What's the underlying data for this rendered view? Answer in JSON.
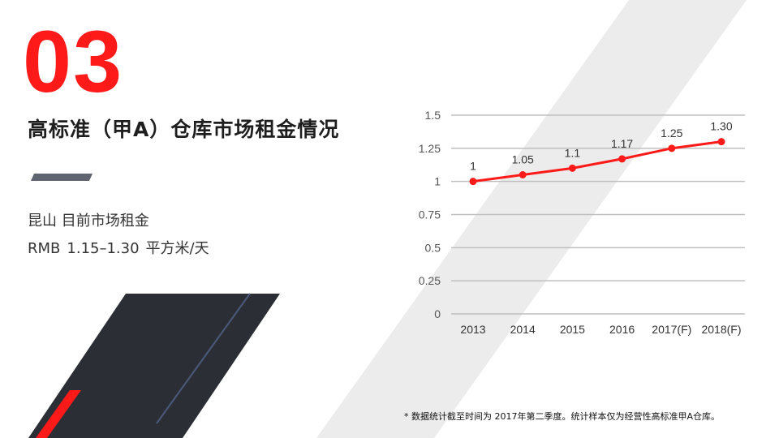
{
  "section": {
    "number": "03",
    "title": "高标准（甲A）仓库市场租金情况"
  },
  "summary": {
    "location_label": "昆山 目前市场租金",
    "currency": "RMB",
    "range": "1.15–1.30",
    "unit": "平方米/天"
  },
  "footnote": "* 数据统计截至时间为 2017年第二季度。统计样本仅为经营性高标准甲A仓库。",
  "colors": {
    "accent": "#ff1a1a",
    "dark_panel": "#2c2e36",
    "stripe": "#ececec",
    "divider": "#5f6470",
    "grid": "#bfbfbf"
  },
  "chart_data": {
    "type": "line",
    "categories": [
      "2013",
      "2014",
      "2015",
      "2016",
      "2017(F)",
      "2018(F)"
    ],
    "values": [
      1,
      1.05,
      1.1,
      1.17,
      1.25,
      1.3
    ],
    "data_labels": [
      "1",
      "1.05",
      "1.1",
      "1.17",
      "1.25",
      "1.30"
    ],
    "y_ticks": [
      "0",
      "0.25",
      "0.5",
      "0.75",
      "1",
      "1.25",
      "1.5"
    ],
    "ylim": [
      0,
      1.5
    ],
    "grid": true,
    "line_color": "#ff1a1a",
    "title": "",
    "xlabel": "",
    "ylabel": ""
  }
}
